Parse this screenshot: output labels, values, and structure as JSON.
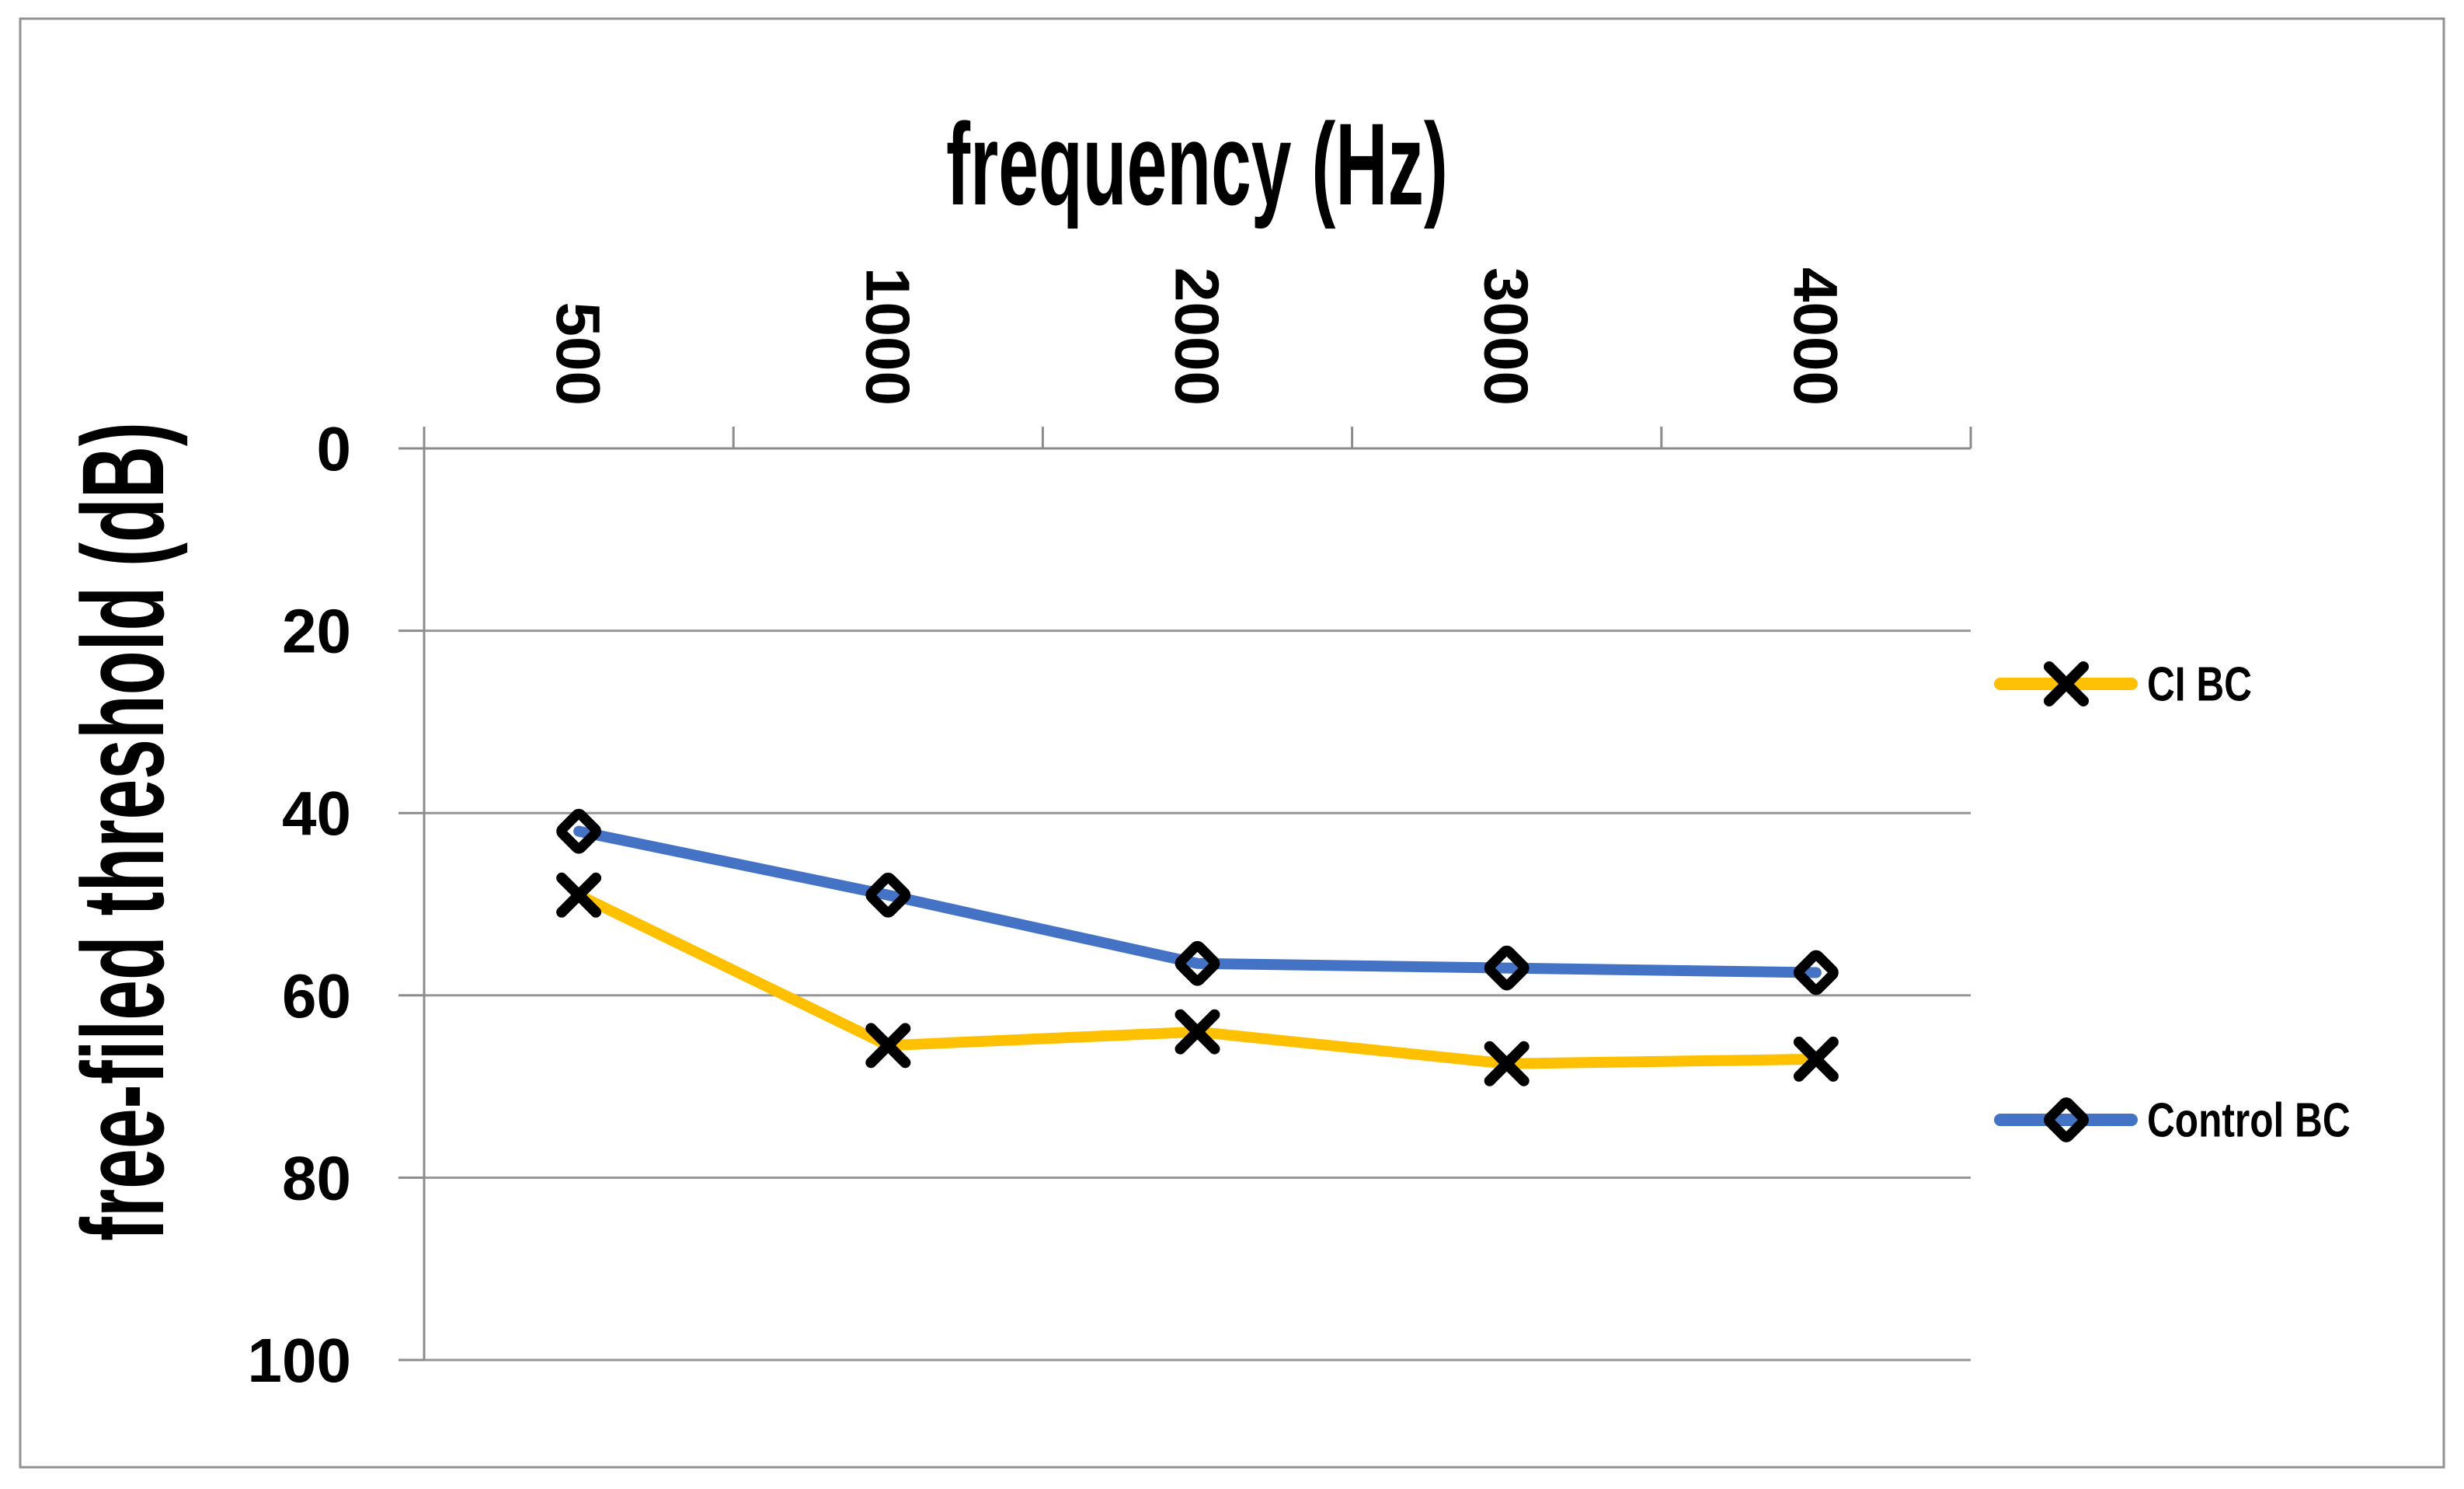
{
  "chart_data": {
    "type": "line",
    "title": "frequency (Hz)",
    "ylabel": "free-filed threshold (dB)",
    "categories": [
      "500",
      "1000",
      "2000",
      "3000",
      "4000"
    ],
    "series": [
      {
        "name": "CI BC",
        "color": "#FFC000",
        "marker": "x",
        "values": [
          49,
          65.5,
          64,
          67.5,
          67
        ]
      },
      {
        "name": "Control BC",
        "color": "#4472C4",
        "marker": "diamond",
        "values": [
          42,
          49,
          56.5,
          57,
          57.5
        ]
      }
    ],
    "y_axis": {
      "min": 0,
      "max": 100,
      "step": 20,
      "inverted": true,
      "tick_labels": [
        "0",
        "20",
        "40",
        "60",
        "80",
        "100"
      ]
    },
    "x_axis_position": "top",
    "legend_position": "right",
    "grid": true,
    "colors": {
      "marker": "#000000",
      "gridline": "#969696",
      "axis": "#8C8C8C",
      "border": "#919191",
      "text": "#000000",
      "background": "#FFFFFF"
    }
  }
}
